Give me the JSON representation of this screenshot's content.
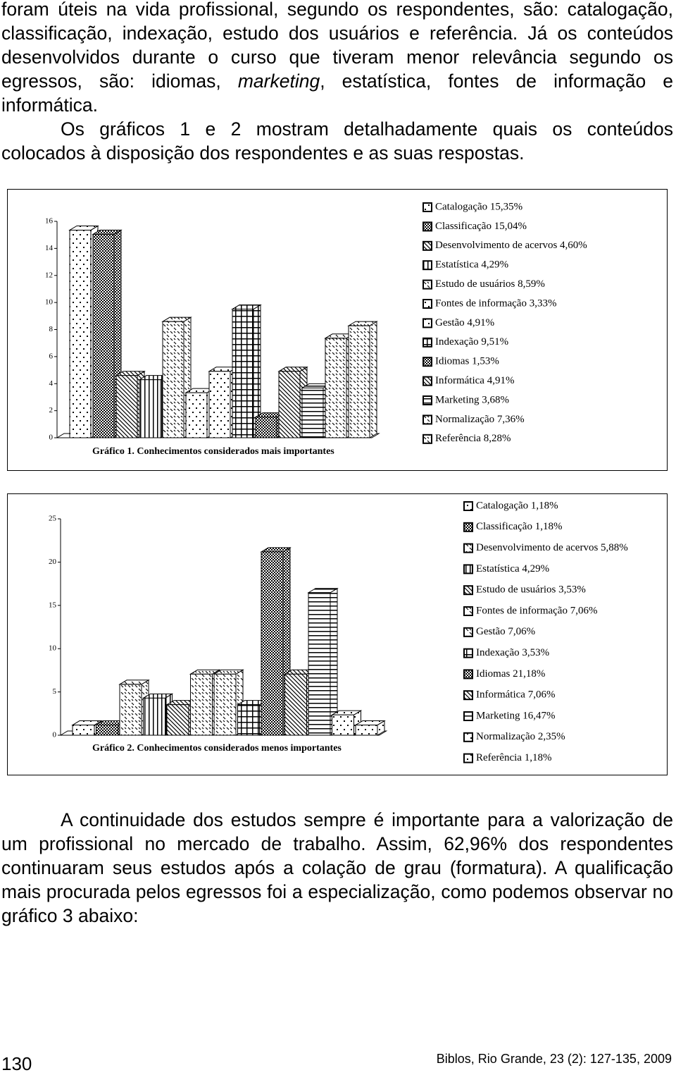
{
  "text_top": {
    "p1": [
      "foram úteis na vida profissional, segundo os respondentes, são: catalogação, classificação, indexação, estudo dos usuários e referência. Já os conteúdos desenvolvidos durante o curso que tiveram menor relevância segundo os egressos, são: idiomas, ",
      "marketing",
      ", estatística, fontes de informação e informática."
    ],
    "p2": "Os gráficos 1 e 2 mostram detalhadamente quais os conteúdos colocados à disposição dos respondentes e as suas respostas."
  },
  "chart_data": [
    {
      "type": "bar",
      "title": "Gráfico 1. Conhecimentos considerados mais importantes",
      "categories": [
        "Catalogação 15,35%",
        "Classificação 15,04%",
        "Desenvolvimento de acervos 4,60%",
        "Estatística 4,29%",
        "Estudo de usuários 8,59%",
        "Fontes de informação 3,33%",
        "Gestão 4,91%",
        "Indexação 9,51%",
        "Idiomas 1,53%",
        "Informática 4,91%",
        "Marketing 3,68%",
        "Normalização 7,36%",
        "Referência 8,28%"
      ],
      "values": [
        15.35,
        15.04,
        4.6,
        4.29,
        8.59,
        3.33,
        4.91,
        9.51,
        1.53,
        4.91,
        3.68,
        7.36,
        8.28
      ],
      "patterns": [
        "dots",
        "checker",
        "diag",
        "vlines",
        "dashdiag",
        "dots",
        "dots",
        "grid",
        "checker",
        "diag",
        "hlines",
        "dashdiag",
        "dashdiag"
      ],
      "ylim": [
        0,
        16
      ],
      "yticks": [
        0,
        2,
        4,
        6,
        8,
        10,
        12,
        14,
        16
      ]
    },
    {
      "type": "bar",
      "title": "Gráfico 2. Conhecimentos considerados menos importantes",
      "categories": [
        "Catalogação 1,18%",
        "Classificação 1,18%",
        "Desenvolvimento de acervos 5,88%",
        "Estatística 4,29%",
        "Estudo de usuários 3,53%",
        "Fontes de informação 7,06%",
        "Gestão 7,06%",
        "Indexação 3,53%",
        "Idiomas 21,18%",
        "Informática 7,06%",
        "Marketing 16,47%",
        "Normalização 2,35%",
        "Referência 1,18%"
      ],
      "values": [
        1.18,
        1.18,
        5.88,
        4.29,
        3.53,
        7.06,
        7.06,
        3.53,
        21.18,
        7.06,
        16.47,
        2.35,
        1.18
      ],
      "patterns": [
        "dots",
        "checker",
        "dashdiag",
        "vlines",
        "diag",
        "dashdiag",
        "dashdiag",
        "grid",
        "checker",
        "diag",
        "hlines",
        "dots",
        "dots"
      ],
      "ylim": [
        0,
        25
      ],
      "yticks": [
        0,
        5,
        10,
        15,
        20,
        25
      ]
    }
  ],
  "text_bottom": "A continuidade dos estudos sempre é importante para a valorização de um profissional no mercado de trabalho. Assim, 62,96% dos respondentes continuaram seus estudos após a colação de grau (formatura). A qualificação mais procurada pelos egressos foi a especialização, como podemos observar no gráfico 3 abaixo:",
  "footer": {
    "page": "130",
    "citation": "Biblos, Rio Grande, 23 (2): 127-135, 2009"
  }
}
